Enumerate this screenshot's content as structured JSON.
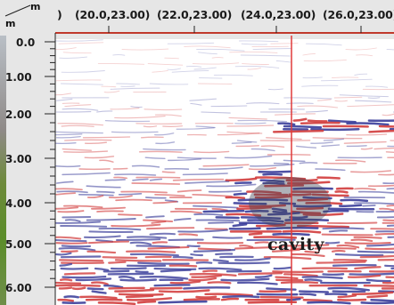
{
  "axes": {
    "x_unit": "m",
    "y_unit": "m",
    "x_partial_label": ")",
    "x_labels": [
      "(20.0,23.00)",
      "(22.0,23.00)",
      "(24.0,23.00)",
      "(26.0,23.00)"
    ],
    "y_labels": [
      "0.0",
      "1.00",
      "2.00",
      "3.00",
      "4.00",
      "5.00",
      "6.00"
    ]
  },
  "annotation": {
    "label": "cavity"
  },
  "colors": {
    "axis_line": "#c0392b",
    "cursor_line": "#e03a3a",
    "positive_reflection": "#d23c3c",
    "negative_reflection": "#3a3d9a",
    "background": "#e6e6e6",
    "highlight": "#404455"
  }
}
